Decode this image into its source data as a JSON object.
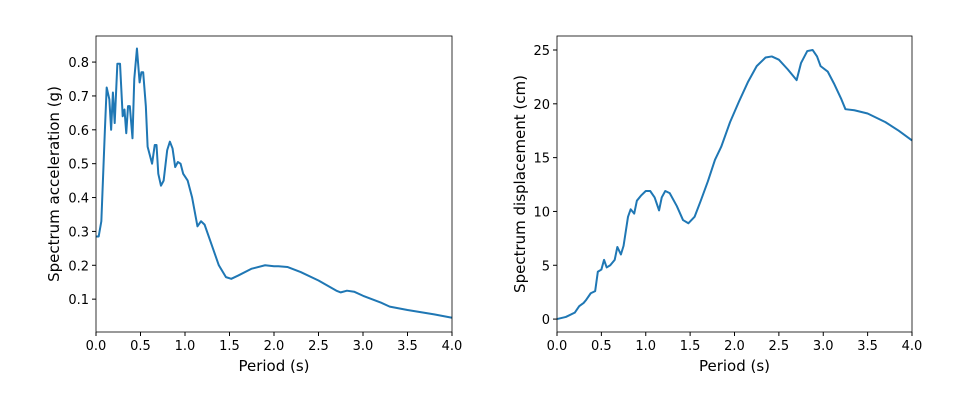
{
  "chart_data": [
    {
      "type": "line",
      "xlabel": "Period (s)",
      "ylabel": "Spectrum acceleration (g)",
      "color": "#1f77b4",
      "x": [
        0,
        0.03,
        0.06,
        0.1,
        0.12,
        0.15,
        0.17,
        0.19,
        0.21,
        0.24,
        0.27,
        0.3,
        0.32,
        0.34,
        0.36,
        0.38,
        0.41,
        0.43,
        0.46,
        0.49,
        0.51,
        0.53,
        0.56,
        0.58,
        0.63,
        0.66,
        0.68,
        0.7,
        0.73,
        0.76,
        0.8,
        0.83,
        0.86,
        0.89,
        0.92,
        0.95,
        0.98,
        1.03,
        1.08,
        1.14,
        1.18,
        1.22,
        1.3,
        1.38,
        1.46,
        1.52,
        1.6,
        1.75,
        1.9,
        2.0,
        2.05,
        2.15,
        2.3,
        2.5,
        2.7,
        2.75,
        2.82,
        2.9,
        3.0,
        3.2,
        3.3,
        3.5,
        3.8,
        4.0
      ],
      "values": [
        0.285,
        0.285,
        0.33,
        0.6,
        0.725,
        0.69,
        0.6,
        0.71,
        0.62,
        0.795,
        0.795,
        0.64,
        0.66,
        0.59,
        0.67,
        0.67,
        0.575,
        0.75,
        0.84,
        0.74,
        0.77,
        0.77,
        0.67,
        0.55,
        0.5,
        0.555,
        0.555,
        0.47,
        0.435,
        0.45,
        0.54,
        0.565,
        0.545,
        0.49,
        0.505,
        0.5,
        0.47,
        0.45,
        0.4,
        0.315,
        0.33,
        0.32,
        0.26,
        0.2,
        0.165,
        0.16,
        0.17,
        0.19,
        0.2,
        0.197,
        0.197,
        0.195,
        0.18,
        0.155,
        0.125,
        0.12,
        0.125,
        0.122,
        0.11,
        0.09,
        0.078,
        0.068,
        0.055,
        0.045
      ],
      "xlim": [
        0,
        4
      ],
      "ylim": [
        0.003,
        0.877
      ],
      "xticks": [
        {
          "value": 0,
          "label": "0.0"
        },
        0.5,
        {
          "value": 1,
          "label": "1.0"
        },
        1.5,
        {
          "value": 2,
          "label": "2.0"
        },
        2.5,
        {
          "value": 3,
          "label": "3.0"
        },
        3.5,
        {
          "value": 4,
          "label": "4.0"
        }
      ],
      "yticks": [
        0.1,
        0.2,
        0.3,
        0.4,
        0.5,
        0.6,
        0.7,
        0.8
      ]
    },
    {
      "type": "line",
      "xlabel": "Period (s)",
      "ylabel": "Spectrum displacement (cm)",
      "color": "#1f77b4",
      "x": [
        0,
        0.1,
        0.2,
        0.25,
        0.3,
        0.33,
        0.38,
        0.43,
        0.46,
        0.5,
        0.53,
        0.56,
        0.6,
        0.65,
        0.68,
        0.72,
        0.75,
        0.8,
        0.83,
        0.87,
        0.9,
        0.95,
        1.0,
        1.05,
        1.1,
        1.15,
        1.18,
        1.22,
        1.27,
        1.35,
        1.42,
        1.48,
        1.55,
        1.62,
        1.7,
        1.78,
        1.85,
        1.95,
        2.05,
        2.15,
        2.25,
        2.35,
        2.42,
        2.5,
        2.6,
        2.7,
        2.75,
        2.82,
        2.88,
        2.93,
        2.97,
        3.05,
        3.12,
        3.2,
        3.25,
        3.35,
        3.5,
        3.7,
        3.85,
        4.0
      ],
      "values": [
        0,
        0.2,
        0.6,
        1.2,
        1.5,
        1.8,
        2.4,
        2.6,
        4.4,
        4.6,
        5.5,
        4.8,
        5,
        5.5,
        6.7,
        6,
        6.8,
        9.5,
        10.2,
        9.8,
        11,
        11.5,
        11.9,
        11.9,
        11.3,
        10.1,
        11.3,
        11.9,
        11.7,
        10.5,
        9.2,
        8.9,
        9.5,
        11,
        12.8,
        14.8,
        16,
        18.3,
        20.2,
        22,
        23.5,
        24.3,
        24.4,
        24.1,
        23.2,
        22.2,
        23.8,
        24.9,
        25,
        24.4,
        23.5,
        23,
        21.9,
        20.5,
        19.5,
        19.4,
        19.1,
        18.3,
        17.5,
        16.6
      ],
      "xlim": [
        0,
        4
      ],
      "ylim": [
        -1.2,
        26.3
      ],
      "xticks": [
        {
          "value": 0,
          "label": "0.0"
        },
        0.5,
        {
          "value": 1,
          "label": "1.0"
        },
        1.5,
        {
          "value": 2,
          "label": "2.0"
        },
        2.5,
        {
          "value": 3,
          "label": "3.0"
        },
        3.5,
        {
          "value": 4,
          "label": "4.0"
        }
      ],
      "yticks": [
        0,
        5,
        10,
        15,
        20,
        25
      ]
    }
  ]
}
